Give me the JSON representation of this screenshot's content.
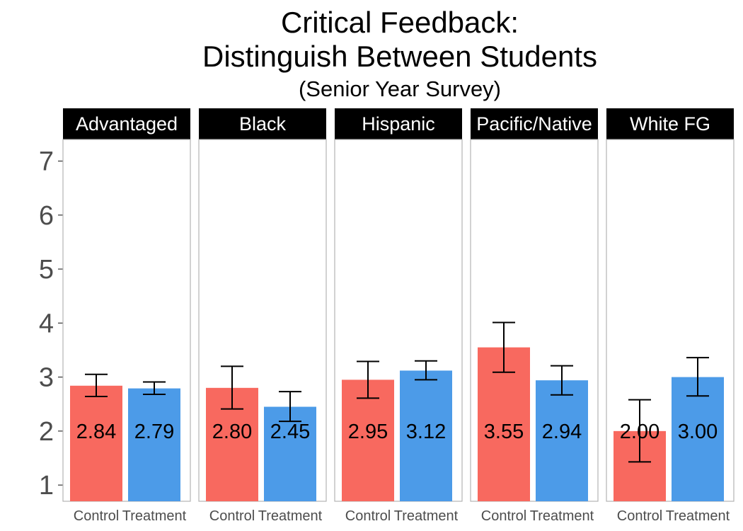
{
  "chart_data": {
    "type": "bar",
    "title": "Critical Feedback:",
    "title_line2": "Distinguish Between Students",
    "subtitle": "(Senior Year Survey)",
    "xlabel": "",
    "ylabel": "",
    "ylim": [
      0.7,
      7.4
    ],
    "yticks": [
      1,
      2,
      3,
      4,
      5,
      6,
      7
    ],
    "grid": false,
    "legend": "none",
    "categories": [
      "Control",
      "Treatment"
    ],
    "colors": {
      "Control": "#f8695f",
      "Treatment": "#4c9be8"
    },
    "label_y": 2.0,
    "facets": [
      {
        "name": "Advantaged",
        "values": [
          2.84,
          2.79
        ],
        "labels": [
          "2.84",
          "2.79"
        ],
        "err_low": [
          2.64,
          2.68
        ],
        "err_high": [
          3.05,
          2.91
        ]
      },
      {
        "name": "Black",
        "values": [
          2.8,
          2.45
        ],
        "labels": [
          "2.80",
          "2.45"
        ],
        "err_low": [
          2.41,
          2.18
        ],
        "err_high": [
          3.2,
          2.73
        ]
      },
      {
        "name": "Hispanic",
        "values": [
          2.95,
          3.12
        ],
        "labels": [
          "2.95",
          "3.12"
        ],
        "err_low": [
          2.61,
          2.95
        ],
        "err_high": [
          3.29,
          3.3
        ]
      },
      {
        "name": "Pacific/Native",
        "values": [
          3.55,
          2.94
        ],
        "labels": [
          "3.55",
          "2.94"
        ],
        "err_low": [
          3.09,
          2.67
        ],
        "err_high": [
          4.01,
          3.21
        ]
      },
      {
        "name": "White FG",
        "values": [
          2.0,
          3.0
        ],
        "labels": [
          "2.00",
          "3.00"
        ],
        "err_low": [
          1.43,
          2.65
        ],
        "err_high": [
          2.58,
          3.36
        ]
      }
    ]
  }
}
